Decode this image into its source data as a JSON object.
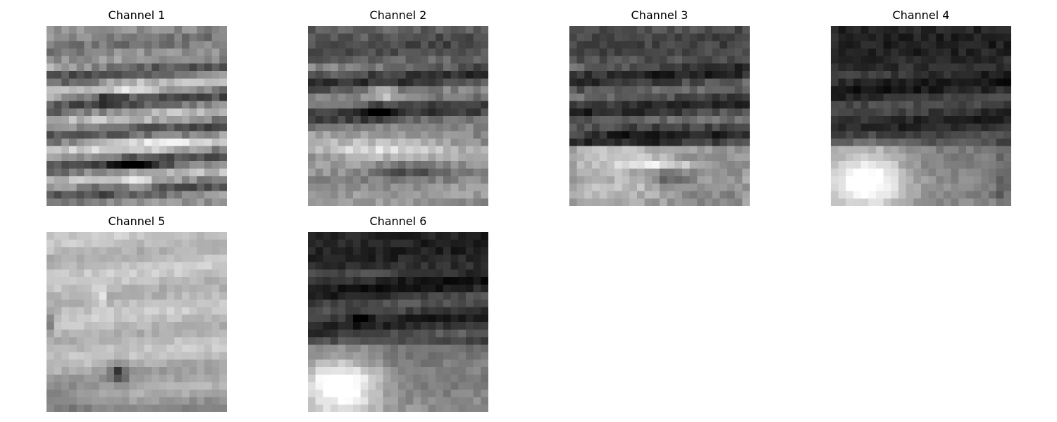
{
  "chart_data": [
    {
      "type": "heatmap",
      "title": "Channel 1",
      "colormap": "gray",
      "axes": "off"
    },
    {
      "type": "heatmap",
      "title": "Channel 2",
      "colormap": "gray",
      "axes": "off"
    },
    {
      "type": "heatmap",
      "title": "Channel 3",
      "colormap": "gray",
      "axes": "off"
    },
    {
      "type": "heatmap",
      "title": "Channel 4",
      "colormap": "gray",
      "axes": "off"
    },
    {
      "type": "heatmap",
      "title": "Channel 5",
      "colormap": "gray",
      "axes": "off"
    },
    {
      "type": "heatmap",
      "title": "Channel 6",
      "colormap": "gray",
      "axes": "off"
    }
  ]
}
